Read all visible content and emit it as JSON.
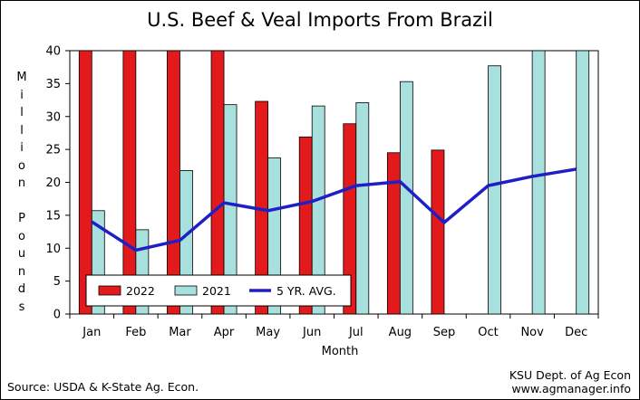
{
  "chart_data": {
    "type": "bar",
    "title": "U.S. Beef & Veal Imports From Brazil",
    "ylabel": "Million Pounds",
    "xlabel": "Month",
    "ylim": [
      0,
      40
    ],
    "yticks": [
      "0",
      "5",
      "10",
      "15",
      "20",
      "25",
      "30",
      "35",
      "40"
    ],
    "categories": [
      "Jan",
      "Feb",
      "Mar",
      "Apr",
      "May",
      "Jun",
      "Jul",
      "Aug",
      "Sep",
      "Oct",
      "Nov",
      "Dec"
    ],
    "series": [
      {
        "name": "2022",
        "kind": "bar",
        "color": "#e31a1c",
        "values": [
          40,
          40,
          40,
          40,
          32.3,
          26.9,
          28.9,
          24.5,
          24.9,
          null,
          null,
          null
        ]
      },
      {
        "name": "2021",
        "kind": "bar",
        "color": "#a8e0de",
        "values": [
          15.7,
          12.8,
          21.8,
          31.8,
          23.7,
          31.6,
          32.1,
          35.3,
          null,
          37.7,
          40,
          40
        ]
      },
      {
        "name": "5 YR. AVG.",
        "kind": "line",
        "color": "#1f1fc8",
        "values": [
          14.0,
          9.7,
          11.2,
          16.9,
          15.7,
          17.1,
          19.5,
          20.1,
          13.9,
          19.5,
          20.9,
          22.0
        ]
      }
    ],
    "legend_position": "bottom-left",
    "grid": false
  },
  "footer": {
    "source": "Source:  USDA & K-State Ag. Econ.",
    "credit_line1": "KSU Dept. of Ag Econ",
    "credit_line2": "www.agmanager.info"
  }
}
